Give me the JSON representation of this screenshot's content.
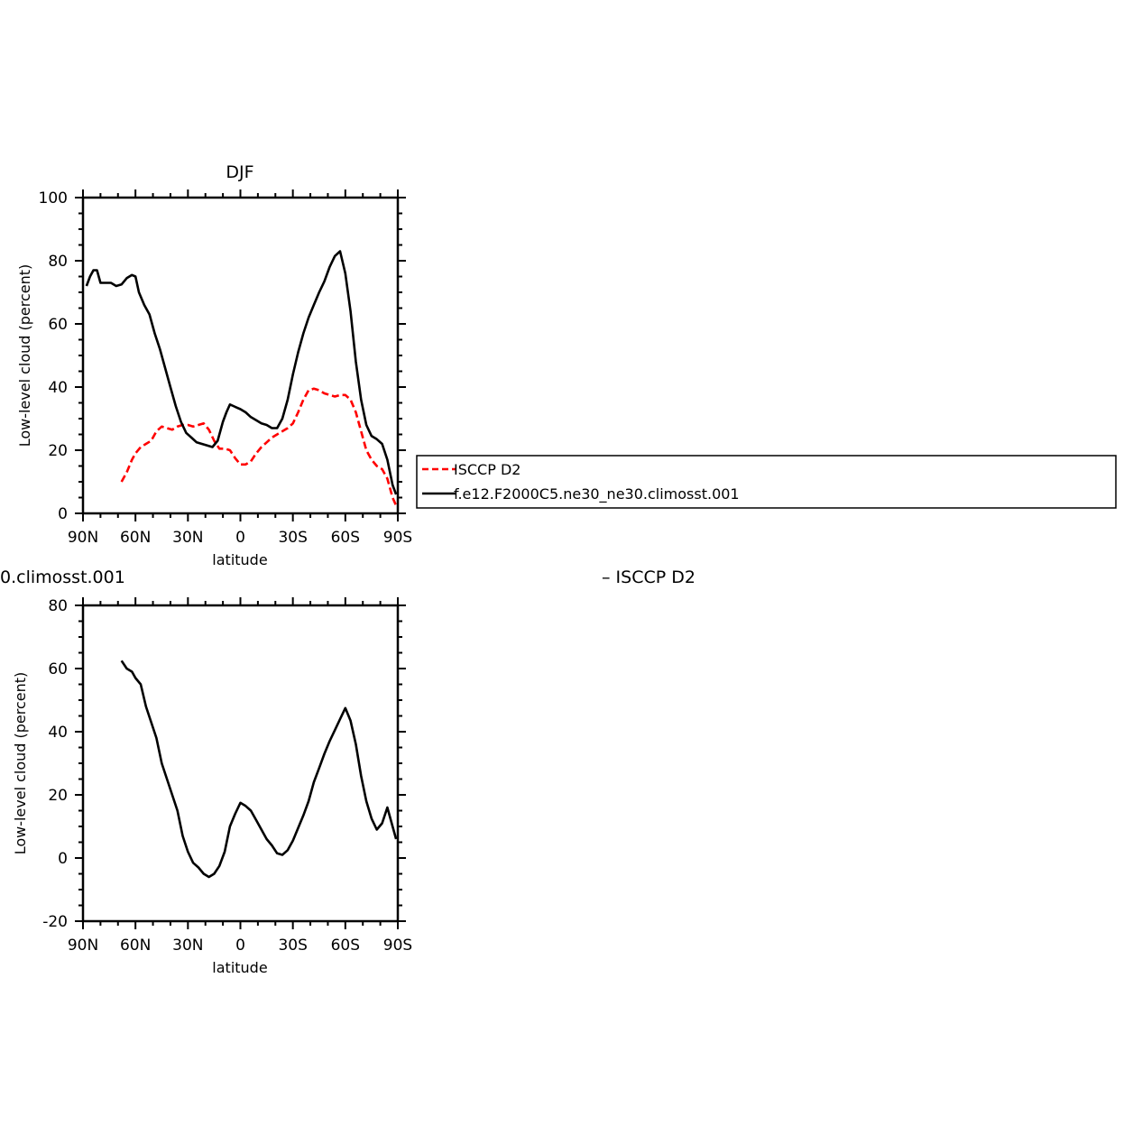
{
  "chart_data": [
    {
      "type": "line",
      "title": "DJF",
      "xlabel": "latitude",
      "ylabel": "Low-level cloud (percent)",
      "xlim": [
        90,
        -90
      ],
      "ylim": [
        0,
        100
      ],
      "x_ticks": [
        90,
        60,
        30,
        0,
        -30,
        -60,
        -90
      ],
      "x_tick_labels": [
        "90N",
        "60N",
        "30N",
        "0",
        "30S",
        "60S",
        "90S"
      ],
      "y_ticks": [
        0,
        20,
        40,
        60,
        80,
        100
      ],
      "y_tick_labels": [
        "0",
        "20",
        "40",
        "60",
        "80",
        "100"
      ],
      "legend_position": "right",
      "series": [
        {
          "name": "ISCCP D2",
          "color": "#ff0000",
          "dash": "dashed",
          "x": [
            68,
            65,
            62,
            60,
            57,
            54,
            51,
            48,
            45,
            42,
            39,
            36,
            33,
            30,
            27,
            24,
            21,
            18,
            15,
            12,
            9,
            6,
            3,
            0,
            -3,
            -6,
            -9,
            -12,
            -15,
            -18,
            -21,
            -24,
            -27,
            -30,
            -33,
            -36,
            -39,
            -42,
            -45,
            -48,
            -51,
            -54,
            -57,
            -60,
            -63,
            -66,
            -69,
            -72,
            -75,
            -78,
            -81,
            -84,
            -87,
            -89
          ],
          "y": [
            10,
            13,
            17,
            19,
            21,
            22,
            23,
            26,
            27.5,
            27,
            26.5,
            27.5,
            28,
            28,
            27.5,
            28,
            28.5,
            26.5,
            23,
            20.5,
            20.5,
            20,
            17.5,
            15.5,
            15.5,
            16.5,
            19,
            21,
            22.5,
            24,
            25,
            26,
            27,
            28.5,
            32,
            36,
            39,
            39.5,
            39,
            38,
            37.5,
            37,
            37.5,
            37.5,
            36,
            32,
            26,
            20,
            17,
            15,
            14,
            11,
            5,
            2.5
          ]
        },
        {
          "name": "f.e12.F2000C5.ne30_ne30.climosst.001",
          "color": "#000000",
          "dash": "solid",
          "x": [
            88,
            86,
            84,
            82,
            80,
            77,
            74,
            71,
            68,
            65,
            62,
            60,
            58,
            55,
            52,
            49,
            46,
            43,
            40,
            37,
            34,
            31,
            28,
            25,
            22,
            19,
            16,
            13,
            10,
            8,
            6,
            4,
            2,
            0,
            -3,
            -6,
            -9,
            -12,
            -15,
            -18,
            -21,
            -24,
            -27,
            -30,
            -33,
            -36,
            -39,
            -42,
            -45,
            -48,
            -51,
            -54,
            -57,
            -60,
            -63,
            -66,
            -69,
            -72,
            -75,
            -78,
            -81,
            -84,
            -87,
            -89
          ],
          "y": [
            72,
            75,
            77,
            77,
            73,
            73,
            73,
            72,
            72.5,
            74.5,
            75.5,
            75,
            70,
            66,
            63,
            57,
            52,
            46,
            40,
            34,
            29,
            25.5,
            24,
            22.5,
            22,
            21.5,
            21,
            23,
            29,
            32,
            34.5,
            34,
            33.5,
            33,
            32,
            30.5,
            29.5,
            28.5,
            28,
            27,
            27,
            30,
            36,
            44,
            51,
            57,
            62,
            66,
            70,
            73.5,
            78,
            81.5,
            83,
            76,
            64,
            48,
            36,
            28,
            24.5,
            23.5,
            22,
            17,
            9,
            6
          ]
        }
      ]
    },
    {
      "type": "line",
      "title": "",
      "xlabel": "latitude",
      "ylabel": "Low-level cloud (percent)",
      "xlim": [
        90,
        -90
      ],
      "ylim": [
        -20,
        80
      ],
      "x_ticks": [
        90,
        60,
        30,
        0,
        -30,
        -60,
        -90
      ],
      "x_tick_labels": [
        "90N",
        "60N",
        "30N",
        "0",
        "30S",
        "60S",
        "90S"
      ],
      "y_ticks": [
        -20,
        0,
        20,
        40,
        60,
        80
      ],
      "y_tick_labels": [
        "-20",
        "0",
        "20",
        "40",
        "60",
        "80"
      ],
      "series": [
        {
          "name": "",
          "color": "#000000",
          "dash": "solid",
          "x": [
            68,
            65,
            62,
            60,
            57,
            54,
            51,
            48,
            45,
            42,
            39,
            36,
            33,
            30,
            27,
            24,
            21,
            18,
            15,
            12,
            9,
            6,
            3,
            0,
            -3,
            -6,
            -9,
            -12,
            -15,
            -18,
            -21,
            -24,
            -27,
            -30,
            -33,
            -36,
            -39,
            -42,
            -45,
            -48,
            -51,
            -54,
            -57,
            -60,
            -63,
            -66,
            -69,
            -72,
            -75,
            -78,
            -81,
            -84,
            -87,
            -89
          ],
          "y": [
            62.5,
            60,
            59,
            57,
            55,
            48,
            43,
            38,
            30,
            25,
            20,
            15,
            7,
            2,
            -1.5,
            -3,
            -5,
            -6,
            -5,
            -2.5,
            2,
            10,
            14,
            17.5,
            16.5,
            15,
            12,
            9,
            6,
            4,
            1.5,
            1,
            2.5,
            5.5,
            9.5,
            13.5,
            18,
            24,
            28.5,
            33,
            37,
            40.5,
            44,
            47.5,
            43.5,
            36,
            26,
            18,
            12.5,
            9,
            11,
            16,
            10,
            6
          ]
        }
      ]
    }
  ],
  "fragments": {
    "left_cut": "0.climosst.001",
    "center_cut": "– ISCCP  D2"
  }
}
